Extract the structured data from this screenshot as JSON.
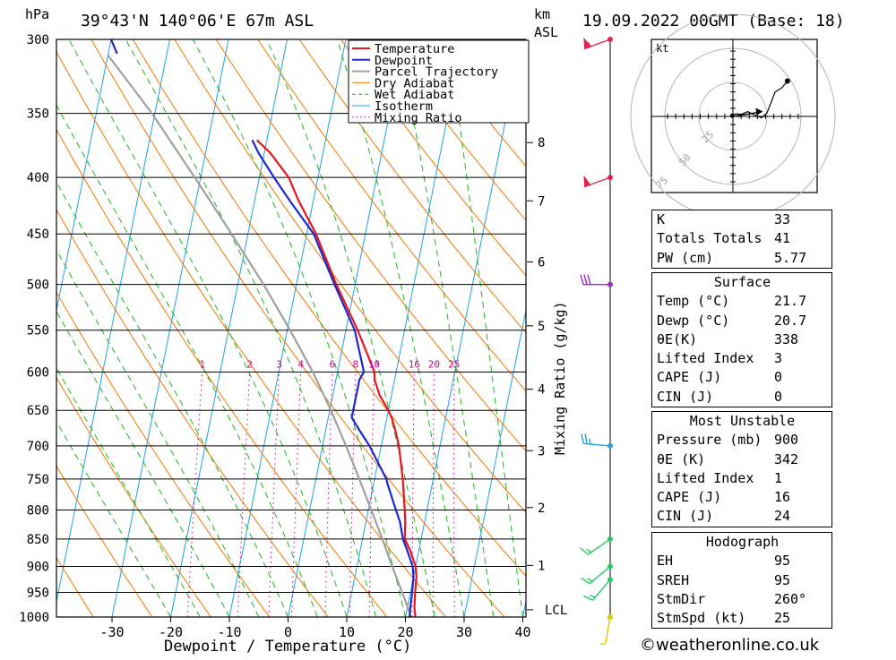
{
  "header": {
    "units_hpa": "hPa",
    "location": "39°43'N  140°06'E  67m  ASL",
    "km": "km",
    "asl": "ASL",
    "datetime": "19.09.2022  00GMT  (Base: 18)"
  },
  "chart_data": {
    "type": "skew-t",
    "xlabel": "Dewpoint / Temperature (°C)",
    "ylabel": "hPa",
    "mixing_ratio_label": "Mixing Ratio (g/kg)",
    "temperature_ticks": [
      -30,
      -20,
      -10,
      0,
      10,
      20,
      30,
      40
    ],
    "pressure_levels": [
      300,
      350,
      400,
      450,
      500,
      550,
      600,
      650,
      700,
      750,
      800,
      850,
      900,
      950,
      1000
    ],
    "km_ticks": [
      {
        "label": "8",
        "p": 372
      },
      {
        "label": "7",
        "p": 420
      },
      {
        "label": "6",
        "p": 477
      },
      {
        "label": "5",
        "p": 545
      },
      {
        "label": "4",
        "p": 622
      },
      {
        "label": "3",
        "p": 707
      },
      {
        "label": "2",
        "p": 796
      },
      {
        "label": "1",
        "p": 898
      },
      {
        "label": "LCL",
        "p": 985
      }
    ],
    "mixing_ratio_values": [
      "1",
      "2",
      "3",
      "4",
      "6",
      "8",
      "10",
      "16",
      "20",
      "25"
    ],
    "legend": [
      "Temperature",
      "Dewpoint",
      "Parcel Trajectory",
      "Dry Adiabat",
      "Wet Adiabat",
      "Isotherm",
      "Mixing Ratio"
    ],
    "legend_position": "top-right",
    "series": {
      "temperature": [
        [
          1000,
          21.7
        ],
        [
          980,
          21.2
        ],
        [
          950,
          20.8
        ],
        [
          920,
          20.5
        ],
        [
          900,
          20.0
        ],
        [
          870,
          18.5
        ],
        [
          850,
          17.2
        ],
        [
          820,
          16.7
        ],
        [
          800,
          16.2
        ],
        [
          760,
          15.1
        ],
        [
          750,
          14.8
        ],
        [
          700,
          13.0
        ],
        [
          680,
          12.0
        ],
        [
          660,
          10.8
        ],
        [
          650,
          10.0
        ],
        [
          630,
          8.0
        ],
        [
          610,
          6.6
        ],
        [
          600,
          6.3
        ],
        [
          550,
          2.0
        ],
        [
          500,
          -3.2
        ],
        [
          450,
          -8.4
        ],
        [
          420,
          -12.5
        ],
        [
          400,
          -15.0
        ],
        [
          380,
          -19.0
        ],
        [
          370,
          -21.7
        ]
      ],
      "dewpoint": [
        [
          1000,
          20.7
        ],
        [
          980,
          20.5
        ],
        [
          950,
          20.3
        ],
        [
          920,
          20.0
        ],
        [
          900,
          19.5
        ],
        [
          870,
          18.0
        ],
        [
          850,
          16.9
        ],
        [
          820,
          15.8
        ],
        [
          800,
          14.7
        ],
        [
          760,
          12.5
        ],
        [
          750,
          12.0
        ],
        [
          700,
          8.0
        ],
        [
          680,
          6.0
        ],
        [
          660,
          4.0
        ],
        [
          650,
          4.0
        ],
        [
          630,
          4.0
        ],
        [
          610,
          4.0
        ],
        [
          600,
          4.5
        ],
        [
          550,
          1.5
        ],
        [
          500,
          -3.5
        ],
        [
          450,
          -8.8
        ],
        [
          420,
          -14.0
        ],
        [
          400,
          -17.5
        ],
        [
          380,
          -21.0
        ],
        [
          370,
          -22.5
        ]
      ],
      "parcel": [
        [
          1000,
          21.0
        ],
        [
          950,
          18.6
        ],
        [
          900,
          16.0
        ],
        [
          850,
          13.4
        ],
        [
          800,
          10.5
        ],
        [
          750,
          7.4
        ],
        [
          700,
          4.0
        ],
        [
          650,
          0.2
        ],
        [
          600,
          -4.2
        ],
        [
          550,
          -9.5
        ],
        [
          500,
          -15.6
        ],
        [
          450,
          -22.8
        ],
        [
          400,
          -31.0
        ],
        [
          350,
          -40.5
        ],
        [
          320,
          -47.5
        ],
        [
          310,
          -50.0
        ]
      ],
      "dewpoint_upper": [
        [
          309,
          -48.5
        ],
        [
          300,
          -50.0
        ]
      ]
    },
    "winds": [
      {
        "p": 300,
        "dir": 250,
        "spd": 55
      },
      {
        "p": 400,
        "dir": 250,
        "spd": 50
      },
      {
        "p": 500,
        "dir": 270,
        "spd": 30
      },
      {
        "p": 700,
        "dir": 275,
        "spd": 25
      },
      {
        "p": 850,
        "dir": 235,
        "spd": 15
      },
      {
        "p": 900,
        "dir": 230,
        "spd": 15
      },
      {
        "p": 925,
        "dir": 220,
        "spd": 15
      },
      {
        "p": 1000,
        "dir": 190,
        "spd": 5
      }
    ],
    "hodograph": {
      "unit": "kt",
      "ring_labels": [
        "25",
        "50",
        "75"
      ],
      "points": [
        [
          -0.5,
          0.5
        ],
        [
          2,
          2
        ],
        [
          6,
          1.5
        ],
        [
          11,
          3.5
        ],
        [
          16,
          1
        ],
        [
          21,
          -1
        ],
        [
          25,
          2.5
        ],
        [
          31,
          18
        ],
        [
          36,
          21
        ],
        [
          40,
          26
        ]
      ]
    }
  },
  "stats": {
    "k_label": "K",
    "k": "33",
    "tt_label": "Totals Totals",
    "tt": "41",
    "pw_label": "PW (cm)",
    "pw": "5.77",
    "surface": {
      "title": "Surface",
      "temp_label": "Temp (°C)",
      "temp": "21.7",
      "dewp_label": "Dewp (°C)",
      "dewp": "20.7",
      "theta_label": "θE(K)",
      "theta": "338",
      "li_label": "Lifted Index",
      "li": "3",
      "cape_label": "CAPE (J)",
      "cape": "0",
      "cin_label": "CIN (J)",
      "cin": "0"
    },
    "unstable": {
      "title": "Most Unstable",
      "pres_label": "Pressure (mb)",
      "pres": "900",
      "theta_label": "θE (K)",
      "theta": "342",
      "li_label": "Lifted Index",
      "li": "1",
      "cape_label": "CAPE (J)",
      "cape": "16",
      "cin_label": "CIN (J)",
      "cin": "24"
    },
    "hodo": {
      "title": "Hodograph",
      "eh_label": "EH",
      "eh": "95",
      "sreh_label": "SREH",
      "sreh": "95",
      "stmdir_label": "StmDir",
      "stmdir": "260°",
      "stmspd_label": "StmSpd (kt)",
      "stmspd": "25"
    }
  },
  "footer": {
    "copyright": "©weatheronline.co.uk"
  },
  "colors": {
    "temperature": "#e8141e",
    "dewpoint": "#1e28c8",
    "parcel": "#a0a0a0",
    "dry_adiabat": "#f07800",
    "wet_adiabat": "#1eb41e",
    "isotherm": "#1ea0e6",
    "mixing_ratio": "#c80096"
  }
}
